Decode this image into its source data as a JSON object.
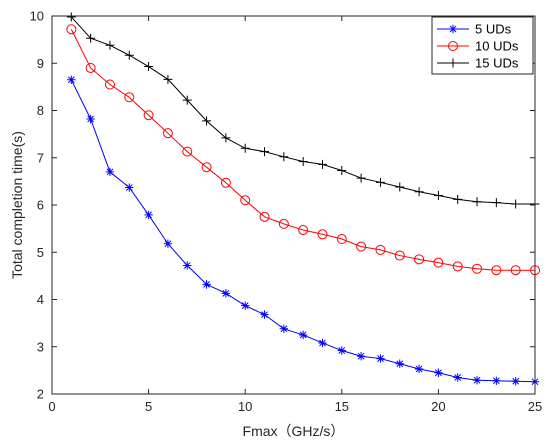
{
  "chart_data": {
    "type": "line",
    "xlabel": "Fmax（GHz/s）",
    "ylabel": "Total completion time(s)",
    "xlim": [
      0,
      25
    ],
    "ylim": [
      2,
      10
    ],
    "xticks": [
      "0",
      "5",
      "10",
      "15",
      "20",
      "25"
    ],
    "yticks": [
      "2",
      "3",
      "4",
      "5",
      "6",
      "7",
      "8",
      "9",
      "10"
    ],
    "grid": false,
    "legend_position": "top-right",
    "x": [
      1,
      2,
      3,
      4,
      5,
      6,
      7,
      8,
      9,
      10,
      11,
      12,
      13,
      14,
      15,
      16,
      17,
      18,
      19,
      20,
      21,
      22,
      23,
      24,
      25
    ],
    "series": [
      {
        "name": "5 UDs",
        "color": "#0000ff",
        "marker": "asterisk",
        "values": [
          8.65,
          7.82,
          6.7,
          6.37,
          5.79,
          5.18,
          4.72,
          4.32,
          4.13,
          3.87,
          3.68,
          3.38,
          3.25,
          3.08,
          2.92,
          2.8,
          2.75,
          2.64,
          2.53,
          2.45,
          2.35,
          2.29,
          2.28,
          2.27,
          2.26
        ]
      },
      {
        "name": "10 UDs",
        "color": "#ff0000",
        "marker": "circle",
        "values": [
          9.72,
          8.9,
          8.55,
          8.28,
          7.9,
          7.52,
          7.13,
          6.8,
          6.47,
          6.1,
          5.75,
          5.6,
          5.47,
          5.38,
          5.28,
          5.12,
          5.05,
          4.93,
          4.85,
          4.78,
          4.7,
          4.65,
          4.62,
          4.62,
          4.62
        ]
      },
      {
        "name": "15 UDs",
        "color": "#000000",
        "marker": "plus",
        "values": [
          9.98,
          9.53,
          9.38,
          9.17,
          8.93,
          8.66,
          8.22,
          7.78,
          7.42,
          7.2,
          7.13,
          7.02,
          6.92,
          6.86,
          6.73,
          6.57,
          6.48,
          6.38,
          6.28,
          6.2,
          6.12,
          6.07,
          6.05,
          6.02,
          6.02
        ]
      }
    ]
  }
}
